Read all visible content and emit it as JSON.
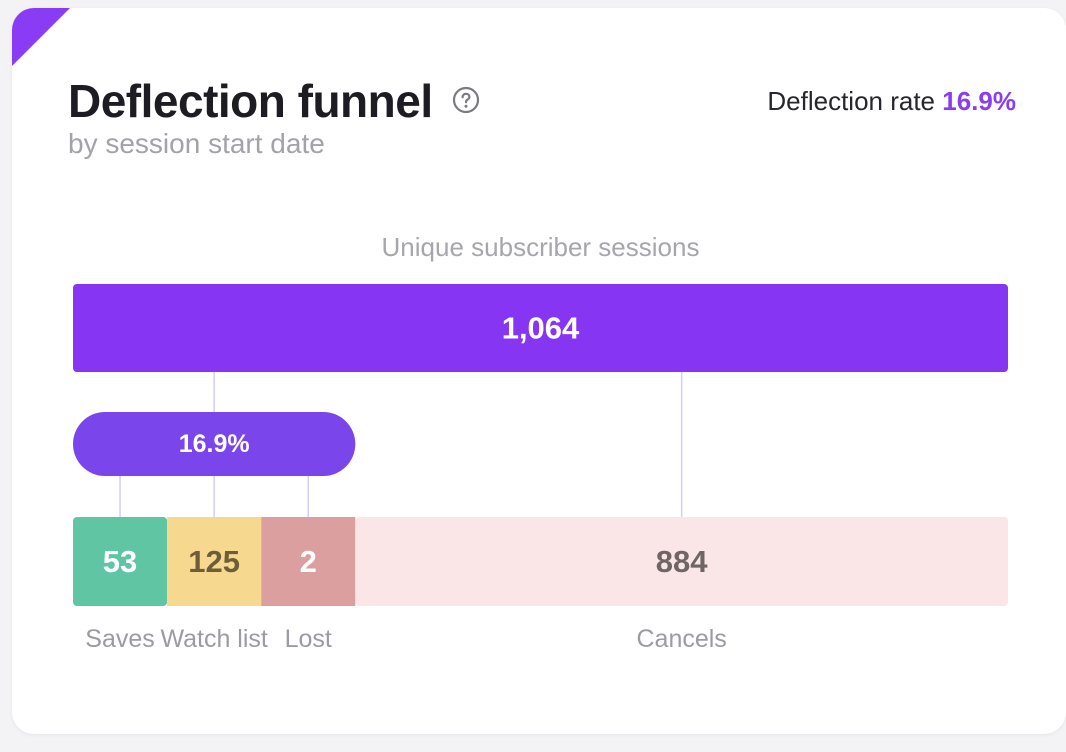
{
  "header": {
    "title": "Deflection funnel",
    "subtitle": "by session start date",
    "rate_label": "Deflection rate",
    "rate_value": "16.9%"
  },
  "icons": {
    "help": "question-circle-icon"
  },
  "colors": {
    "accent": "#8a3cf5",
    "total_bar": "#8636f2",
    "deflection_pill": "#7b45ec",
    "saves": "#5fc5a3",
    "watch_list": "#f6d88f",
    "lost": "#db9f9f",
    "cancels": "#fae6e6"
  },
  "chart_data": {
    "type": "funnel",
    "caption": "Unique subscriber sessions",
    "total": {
      "label": "Unique subscriber sessions",
      "value": 1064,
      "display": "1,064"
    },
    "deflection": {
      "value": 16.9,
      "display": "16.9%"
    },
    "segments": [
      {
        "name": "Saves",
        "value": 53,
        "display": "53",
        "deflected": true
      },
      {
        "name": "Watch list",
        "value": 125,
        "display": "125",
        "deflected": true
      },
      {
        "name": "Lost",
        "value": 2,
        "display": "2",
        "deflected": true
      },
      {
        "name": "Cancels",
        "value": 884,
        "display": "884",
        "deflected": false
      }
    ]
  }
}
